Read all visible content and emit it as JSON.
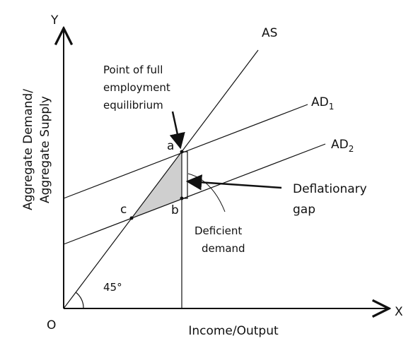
{
  "axes": {
    "y_letter": "Y",
    "x_letter": "X",
    "origin": "O",
    "x_label": "Income/Output",
    "y_label_lines": [
      "Aggregate Demand/",
      "Aggregate Supply"
    ],
    "angle": "45°"
  },
  "lines": {
    "as": "AS",
    "ad1": {
      "label": "AD",
      "subscript": "1"
    },
    "ad2": {
      "label": "AD",
      "subscript": "2"
    }
  },
  "points": {
    "a": "a",
    "b": "b",
    "c": "c"
  },
  "annotations": {
    "full_employment": [
      "Point of full",
      "employment",
      "equilibrium"
    ],
    "gap": [
      "Deflationary",
      "gap"
    ],
    "deficient": [
      "Deficient",
      "demand"
    ]
  }
}
